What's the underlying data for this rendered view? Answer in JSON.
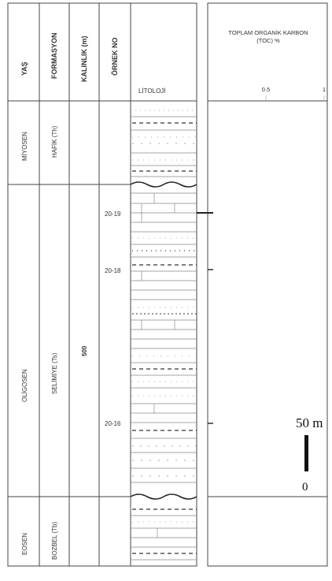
{
  "headers": {
    "age": "YAŞ",
    "formation": "FORMASYON",
    "thickness": "KALINLIK (m)",
    "sample_no": "ÖRNEK NO",
    "lithology": "LİTOLOJİ"
  },
  "toc": {
    "title_line1": "TOPLAM ORGANİK KARBON",
    "title_line2": "(TOC) %",
    "tick_labels": [
      "0.5",
      "1"
    ],
    "tick_values": [
      0.5,
      1
    ],
    "values": [
      {
        "sample": "20-19",
        "toc": 0.0
      },
      {
        "sample": "20-18",
        "toc": 0.0
      },
      {
        "sample": "20-16",
        "toc": 0.0
      }
    ]
  },
  "units": [
    {
      "age": "MİYOSEN",
      "formation": "HAFİK (Th)"
    },
    {
      "age": "OLİGOSEN",
      "formation": "SELİMİYE (Ts)",
      "thickness": "500"
    },
    {
      "age": "EOSEN",
      "formation": "BOZBEL (Tb)"
    }
  ],
  "samples": [
    "20-19",
    "20-18",
    "20-16"
  ],
  "scale_bar": {
    "top_label": "50 m",
    "bottom_label": "0"
  }
}
